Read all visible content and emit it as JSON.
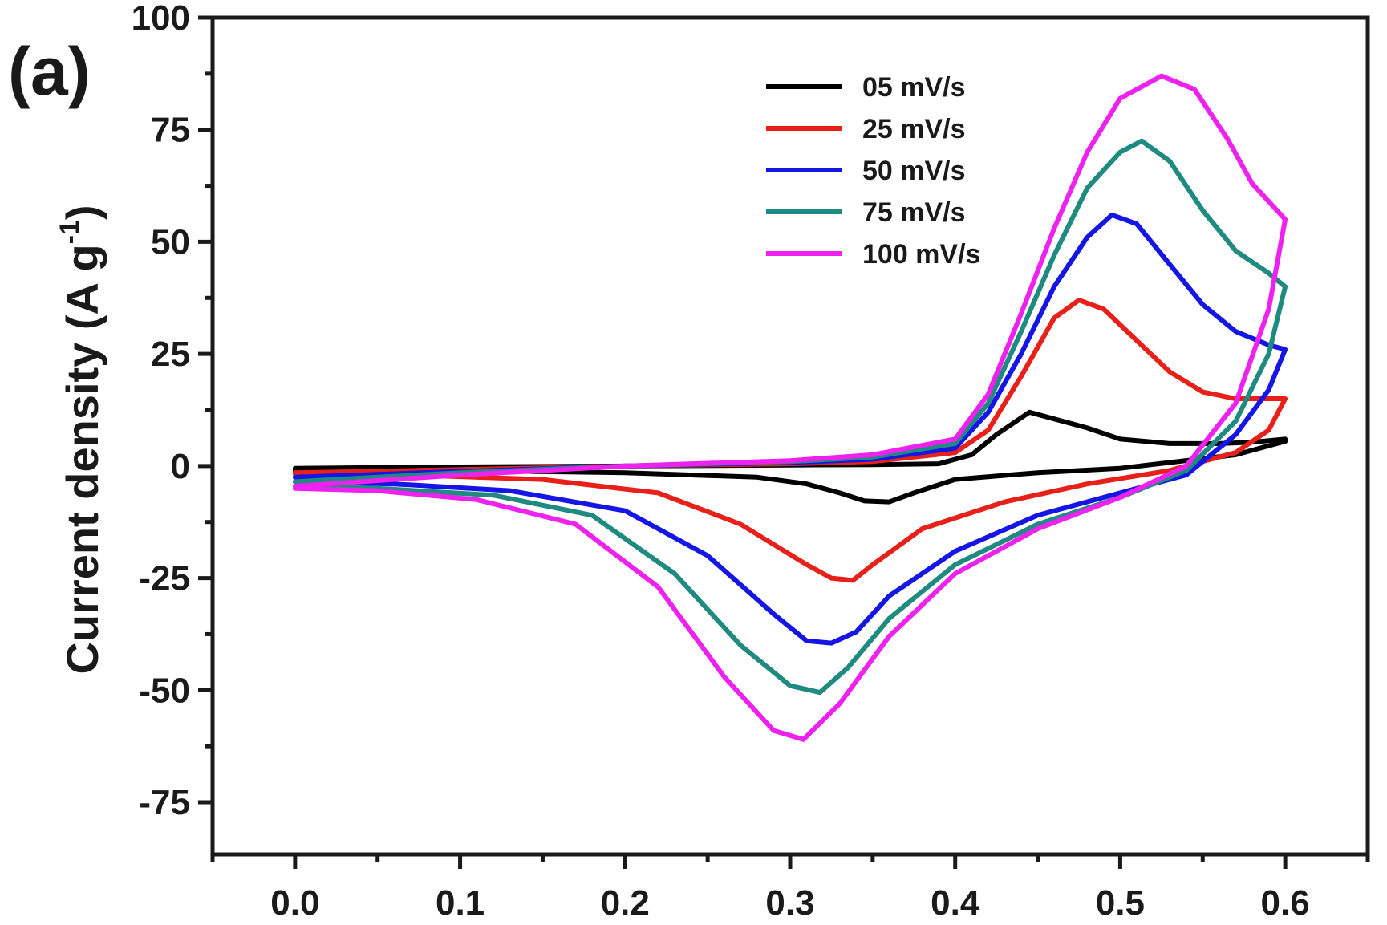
{
  "chart_data": {
    "type": "line",
    "panel_label": "(a)",
    "xlabel": "",
    "ylabel": "Current density (A g",
    "ylabel_superscript": "-1",
    "ylabel_suffix": ")",
    "xlim": [
      -0.05,
      0.65
    ],
    "ylim": [
      -75,
      100
    ],
    "x_ticks": [
      0.0,
      0.1,
      0.2,
      0.3,
      0.4,
      0.5,
      0.6
    ],
    "x_tick_labels": [
      "0.0",
      "0.1",
      "0.2",
      "0.3",
      "0.4",
      "0.5",
      "0.6"
    ],
    "y_ticks": [
      -75,
      -50,
      -25,
      0,
      25,
      50,
      75,
      100
    ],
    "y_tick_labels": [
      "-75",
      "-50",
      "-25",
      "0",
      "25",
      "50",
      "75",
      "100"
    ],
    "grid": false,
    "legend_position": "top-right",
    "series": [
      {
        "name": "05 mV/s",
        "color": "#000000",
        "points": [
          [
            0.0,
            -0.5
          ],
          [
            0.1,
            -0.2
          ],
          [
            0.2,
            0.0
          ],
          [
            0.3,
            0.2
          ],
          [
            0.35,
            0.3
          ],
          [
            0.39,
            0.5
          ],
          [
            0.41,
            2.5
          ],
          [
            0.425,
            7.0
          ],
          [
            0.445,
            12.0
          ],
          [
            0.46,
            10.5
          ],
          [
            0.48,
            8.5
          ],
          [
            0.5,
            6.0
          ],
          [
            0.53,
            5.0
          ],
          [
            0.56,
            5.0
          ],
          [
            0.58,
            5.3
          ],
          [
            0.6,
            6.0
          ],
          [
            0.6,
            5.5
          ],
          [
            0.57,
            2.5
          ],
          [
            0.5,
            -0.5
          ],
          [
            0.45,
            -1.5
          ],
          [
            0.4,
            -3.0
          ],
          [
            0.375,
            -6.0
          ],
          [
            0.36,
            -8.0
          ],
          [
            0.345,
            -7.8
          ],
          [
            0.33,
            -6.0
          ],
          [
            0.31,
            -4.0
          ],
          [
            0.28,
            -2.5
          ],
          [
            0.2,
            -1.5
          ],
          [
            0.1,
            -1.0
          ],
          [
            0.0,
            -1.0
          ]
        ]
      },
      {
        "name": "25 mV/s",
        "color": "#e8201a",
        "points": [
          [
            0.0,
            -1.5
          ],
          [
            0.1,
            -0.8
          ],
          [
            0.2,
            0.0
          ],
          [
            0.3,
            0.5
          ],
          [
            0.35,
            1.0
          ],
          [
            0.4,
            3.0
          ],
          [
            0.42,
            8.0
          ],
          [
            0.44,
            20.0
          ],
          [
            0.46,
            33.0
          ],
          [
            0.475,
            37.0
          ],
          [
            0.49,
            35.0
          ],
          [
            0.51,
            28.0
          ],
          [
            0.53,
            21.0
          ],
          [
            0.55,
            16.5
          ],
          [
            0.57,
            15.0
          ],
          [
            0.6,
            15.0
          ],
          [
            0.6,
            15.0
          ],
          [
            0.59,
            8.0
          ],
          [
            0.57,
            3.0
          ],
          [
            0.53,
            -1.0
          ],
          [
            0.48,
            -4.0
          ],
          [
            0.43,
            -8.0
          ],
          [
            0.38,
            -14.0
          ],
          [
            0.35,
            -22.0
          ],
          [
            0.338,
            -25.5
          ],
          [
            0.325,
            -25.0
          ],
          [
            0.31,
            -22.0
          ],
          [
            0.27,
            -13.0
          ],
          [
            0.22,
            -6.0
          ],
          [
            0.15,
            -3.0
          ],
          [
            0.07,
            -2.0
          ],
          [
            0.0,
            -1.8
          ]
        ]
      },
      {
        "name": "50 mV/s",
        "color": "#1515e6",
        "points": [
          [
            0.0,
            -2.5
          ],
          [
            0.1,
            -1.2
          ],
          [
            0.2,
            0.0
          ],
          [
            0.3,
            0.8
          ],
          [
            0.35,
            1.5
          ],
          [
            0.4,
            4.0
          ],
          [
            0.42,
            12.0
          ],
          [
            0.44,
            25.0
          ],
          [
            0.46,
            40.0
          ],
          [
            0.48,
            51.0
          ],
          [
            0.495,
            56.0
          ],
          [
            0.51,
            54.0
          ],
          [
            0.53,
            45.0
          ],
          [
            0.55,
            36.0
          ],
          [
            0.57,
            30.0
          ],
          [
            0.59,
            27.0
          ],
          [
            0.6,
            26.0
          ],
          [
            0.6,
            26.0
          ],
          [
            0.59,
            17.0
          ],
          [
            0.57,
            7.0
          ],
          [
            0.54,
            -2.0
          ],
          [
            0.5,
            -6.0
          ],
          [
            0.45,
            -11.0
          ],
          [
            0.4,
            -19.0
          ],
          [
            0.36,
            -29.0
          ],
          [
            0.34,
            -37.0
          ],
          [
            0.325,
            -39.5
          ],
          [
            0.31,
            -39.0
          ],
          [
            0.29,
            -33.0
          ],
          [
            0.25,
            -20.0
          ],
          [
            0.2,
            -10.0
          ],
          [
            0.13,
            -5.5
          ],
          [
            0.06,
            -4.0
          ],
          [
            0.0,
            -3.5
          ]
        ]
      },
      {
        "name": "75 mV/s",
        "color": "#1e8a80",
        "points": [
          [
            0.0,
            -3.5
          ],
          [
            0.1,
            -1.5
          ],
          [
            0.2,
            0.0
          ],
          [
            0.3,
            1.0
          ],
          [
            0.35,
            2.0
          ],
          [
            0.4,
            5.0
          ],
          [
            0.42,
            14.0
          ],
          [
            0.44,
            30.0
          ],
          [
            0.46,
            47.0
          ],
          [
            0.48,
            62.0
          ],
          [
            0.5,
            70.0
          ],
          [
            0.513,
            72.5
          ],
          [
            0.53,
            68.0
          ],
          [
            0.55,
            57.0
          ],
          [
            0.57,
            48.0
          ],
          [
            0.59,
            43.0
          ],
          [
            0.6,
            40.0
          ],
          [
            0.6,
            40.0
          ],
          [
            0.59,
            25.0
          ],
          [
            0.57,
            10.0
          ],
          [
            0.54,
            -1.0
          ],
          [
            0.5,
            -7.0
          ],
          [
            0.45,
            -13.0
          ],
          [
            0.4,
            -22.0
          ],
          [
            0.36,
            -34.0
          ],
          [
            0.335,
            -45.0
          ],
          [
            0.318,
            -50.5
          ],
          [
            0.3,
            -49.0
          ],
          [
            0.27,
            -40.0
          ],
          [
            0.23,
            -24.0
          ],
          [
            0.18,
            -11.0
          ],
          [
            0.12,
            -6.5
          ],
          [
            0.05,
            -5.0
          ],
          [
            0.0,
            -4.5
          ]
        ]
      },
      {
        "name": "100 mV/s",
        "color": "#ee22ee",
        "points": [
          [
            0.0,
            -4.5
          ],
          [
            0.1,
            -2.0
          ],
          [
            0.2,
            0.0
          ],
          [
            0.3,
            1.2
          ],
          [
            0.35,
            2.5
          ],
          [
            0.4,
            6.0
          ],
          [
            0.42,
            16.0
          ],
          [
            0.44,
            34.0
          ],
          [
            0.46,
            53.0
          ],
          [
            0.48,
            70.0
          ],
          [
            0.5,
            82.0
          ],
          [
            0.525,
            87.0
          ],
          [
            0.545,
            84.0
          ],
          [
            0.565,
            73.0
          ],
          [
            0.58,
            63.0
          ],
          [
            0.595,
            57.0
          ],
          [
            0.6,
            55.0
          ],
          [
            0.6,
            55.0
          ],
          [
            0.59,
            35.0
          ],
          [
            0.57,
            14.0
          ],
          [
            0.54,
            0.0
          ],
          [
            0.5,
            -7.0
          ],
          [
            0.45,
            -14.0
          ],
          [
            0.4,
            -24.0
          ],
          [
            0.36,
            -38.0
          ],
          [
            0.33,
            -53.0
          ],
          [
            0.308,
            -61.0
          ],
          [
            0.29,
            -59.0
          ],
          [
            0.26,
            -47.0
          ],
          [
            0.22,
            -27.0
          ],
          [
            0.17,
            -13.0
          ],
          [
            0.11,
            -7.5
          ],
          [
            0.05,
            -5.5
          ],
          [
            0.0,
            -5.0
          ]
        ]
      }
    ]
  }
}
